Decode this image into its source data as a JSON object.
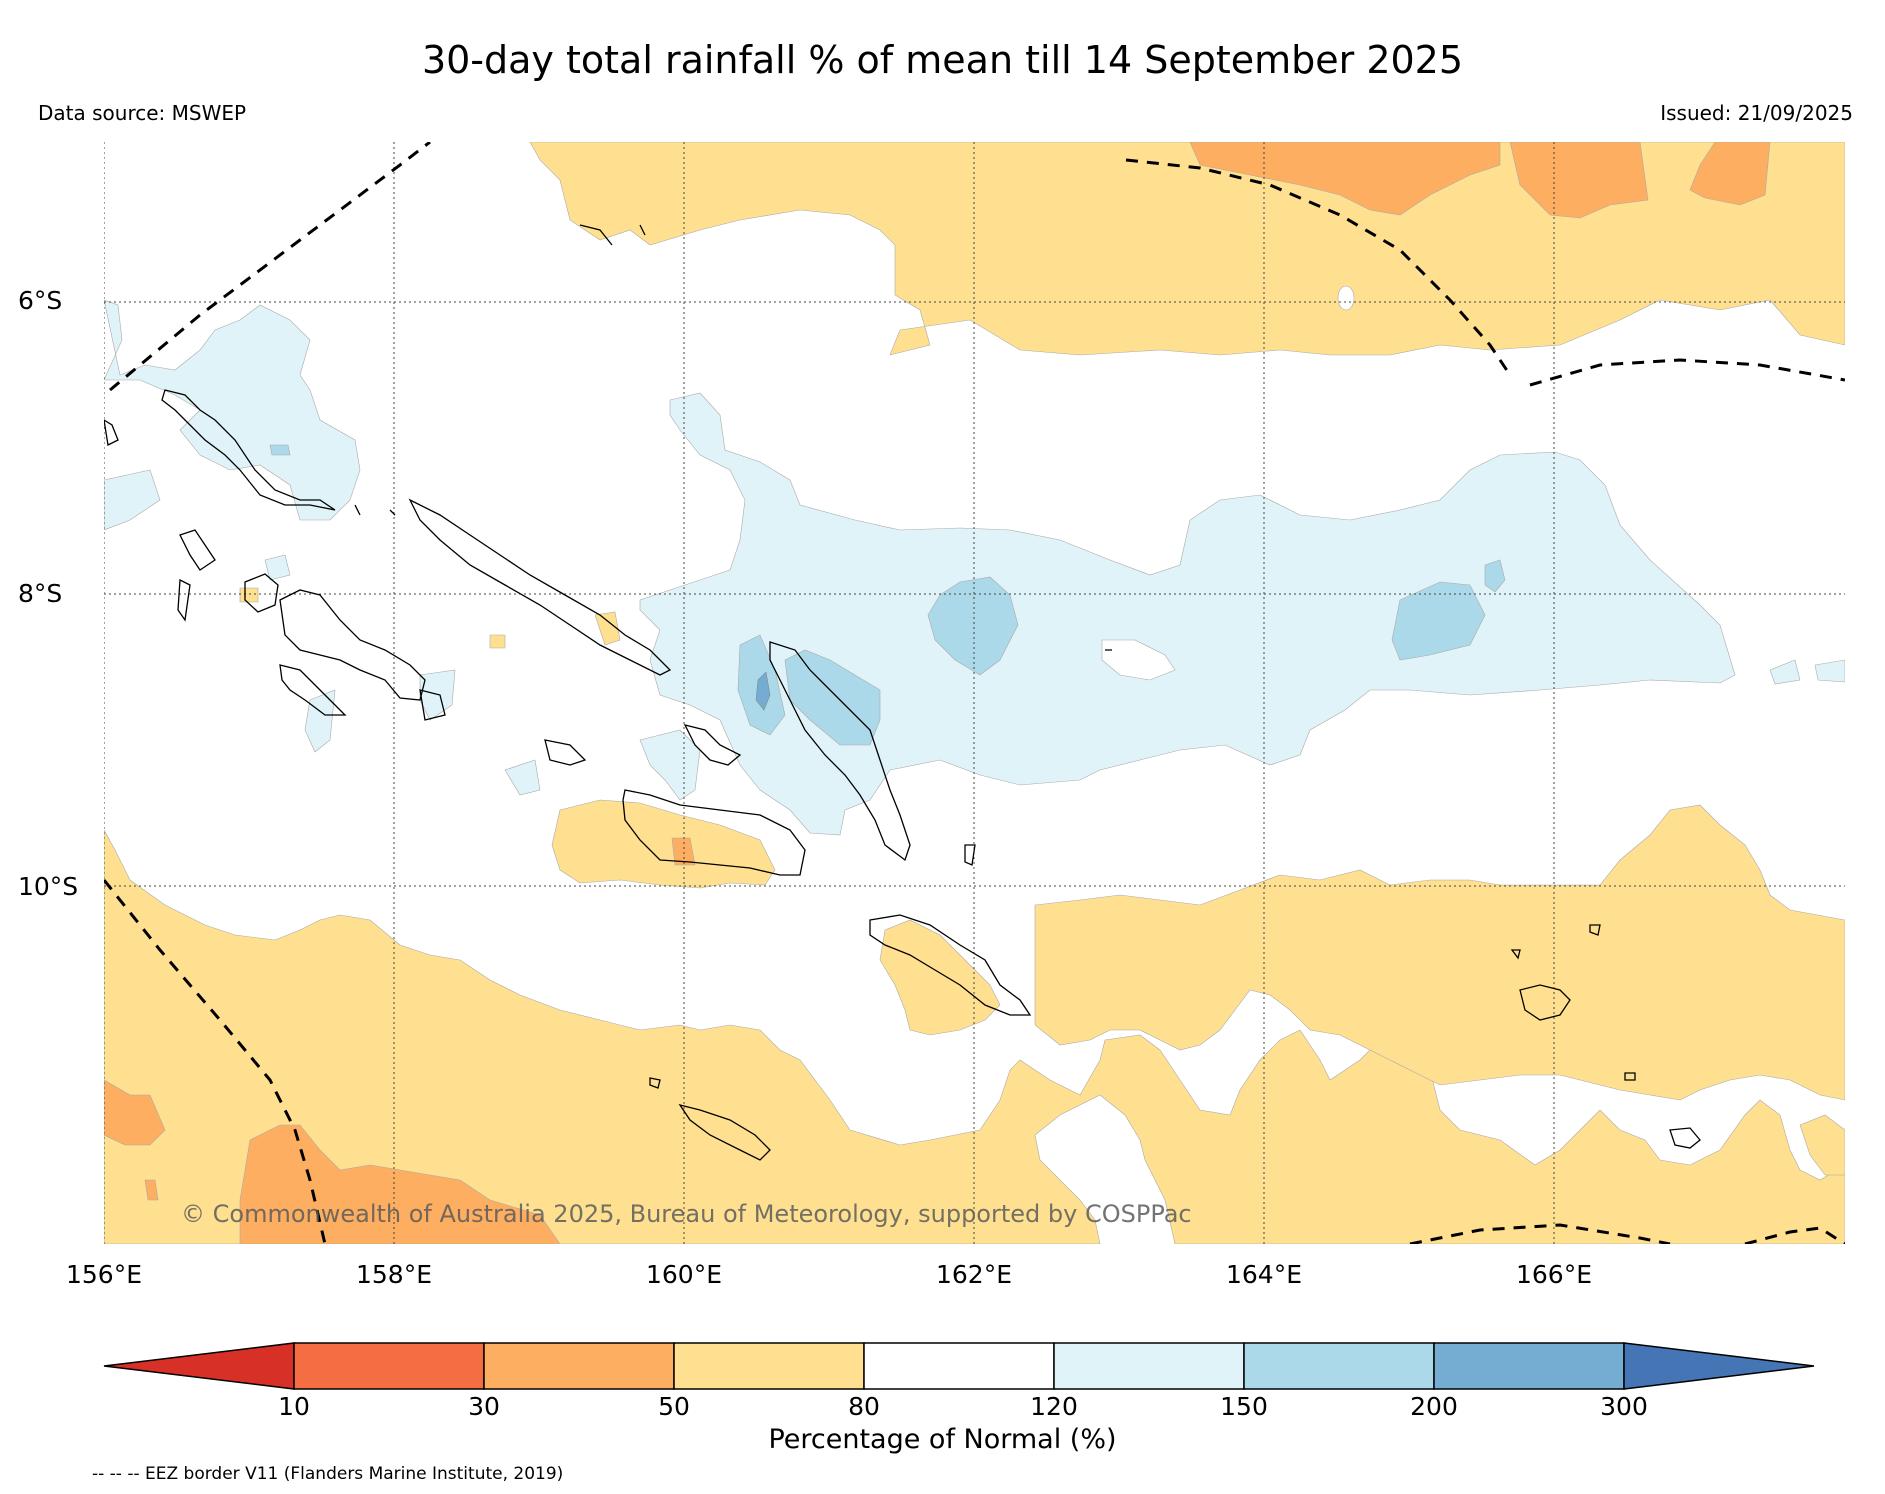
{
  "title": "30-day total rainfall % of mean till 14 September 2025",
  "data_source": "Data source: MSWEP",
  "issued": "Issued: 21/09/2025",
  "axes": {
    "lat_labels": [
      "6°S",
      "8°S",
      "10°S"
    ],
    "lon_labels": [
      "156°E",
      "158°E",
      "160°E",
      "162°E",
      "164°E",
      "166°E"
    ]
  },
  "colorbar": {
    "title": "Percentage of Normal (%)",
    "ticks": [
      "10",
      "30",
      "50",
      "80",
      "120",
      "150",
      "200",
      "300"
    ],
    "colors": [
      "#d73027",
      "#f46d43",
      "#fdae61",
      "#fee090",
      "#ffffff",
      "#e0f3f8",
      "#abd9e9",
      "#74add1",
      "#4575b4"
    ]
  },
  "copyright": "© Commonwealth of Australia 2025, Bureau of Meteorology, supported by COSPPac",
  "eez_note": "-- -- -- EEZ border V11 (Flanders Marine Institute, 2019)",
  "palette": {
    "dry_50_80": "#fee090",
    "dry_30_50": "#fdae61",
    "wet_120_150": "#e0f3f8",
    "wet_150_200": "#abd9e9",
    "wet_200_300": "#74add1"
  }
}
